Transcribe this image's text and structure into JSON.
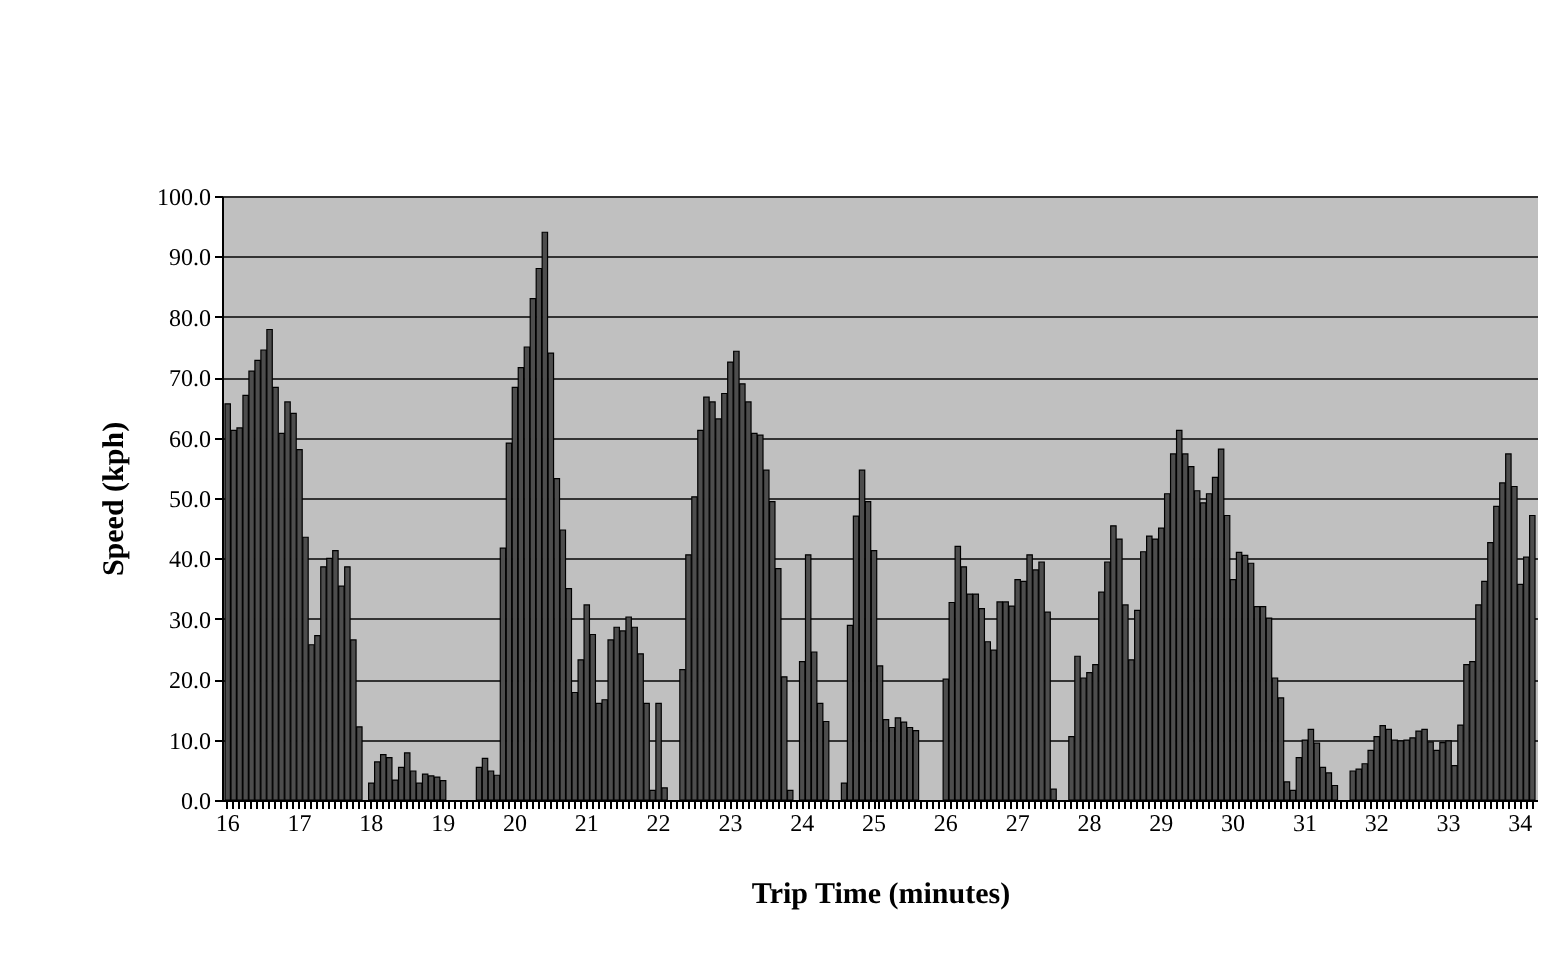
{
  "chart_data": {
    "type": "bar",
    "xlabel": "Trip Time (minutes)",
    "ylabel": "Speed (kph)",
    "color": "#4d4d4d",
    "grid": "y",
    "ylim": [
      0,
      100
    ],
    "yticks": [
      {
        "value": 0,
        "label": "0.0"
      },
      {
        "value": 10,
        "label": "10.0"
      },
      {
        "value": 20,
        "label": "20.0"
      },
      {
        "value": 30,
        "label": "30.0"
      },
      {
        "value": 40,
        "label": "40.0"
      },
      {
        "value": 50,
        "label": "50.0"
      },
      {
        "value": 60,
        "label": "60.0"
      },
      {
        "value": 70,
        "label": "70.0"
      },
      {
        "value": 80,
        "label": "80.0"
      },
      {
        "value": 90,
        "label": "90.0"
      },
      {
        "value": 100,
        "label": "100.0"
      }
    ],
    "categories": [
      "16",
      null,
      null,
      null,
      null,
      null,
      null,
      null,
      null,
      null,
      null,
      null,
      "17",
      null,
      null,
      null,
      null,
      null,
      null,
      null,
      null,
      null,
      null,
      null,
      "18",
      null,
      null,
      null,
      null,
      null,
      null,
      null,
      null,
      null,
      null,
      null,
      "19",
      null,
      null,
      null,
      null,
      null,
      null,
      null,
      null,
      null,
      null,
      null,
      "20",
      null,
      null,
      null,
      null,
      null,
      null,
      null,
      null,
      null,
      null,
      null,
      "21",
      null,
      null,
      null,
      null,
      null,
      null,
      null,
      null,
      null,
      null,
      null,
      "22",
      null,
      null,
      null,
      null,
      null,
      null,
      null,
      null,
      null,
      null,
      null,
      "23",
      null,
      null,
      null,
      null,
      null,
      null,
      null,
      null,
      null,
      null,
      null,
      "24",
      null,
      null,
      null,
      null,
      null,
      null,
      null,
      null,
      null,
      null,
      null,
      "25",
      null,
      null,
      null,
      null,
      null,
      null,
      null,
      null,
      null,
      null,
      null,
      "26",
      null,
      null,
      null,
      null,
      null,
      null,
      null,
      null,
      null,
      null,
      null,
      "27",
      null,
      null,
      null,
      null,
      null,
      null,
      null,
      null,
      null,
      null,
      null,
      "28",
      null,
      null,
      null,
      null,
      null,
      null,
      null,
      null,
      null,
      null,
      null,
      "29",
      null,
      null,
      null,
      null,
      null,
      null,
      null,
      null,
      null,
      null,
      null,
      "30",
      null,
      null,
      null,
      null,
      null,
      null,
      null,
      null,
      null,
      null,
      null,
      "31",
      null,
      null,
      null,
      null,
      null,
      null,
      null,
      null,
      null,
      null,
      null,
      "32",
      null,
      null,
      null,
      null,
      null,
      null,
      null,
      null,
      null,
      null,
      null,
      "33",
      null,
      null,
      null,
      null,
      null,
      null,
      null,
      null,
      null,
      null,
      null,
      "34",
      null,
      null
    ],
    "values": [
      65.6,
      61.2,
      61.6,
      67,
      71,
      72.8,
      74.5,
      77.9,
      68.3,
      60.7,
      65.9,
      64,
      58,
      43.5,
      25.7,
      27.2,
      38.6,
      40,
      41.3,
      35.4,
      38.6,
      26.5,
      12.1,
      0,
      2.8,
      6.3,
      7.5,
      7,
      3.3,
      5.4,
      7.8,
      4.8,
      2.8,
      4.3,
      4,
      3.8,
      3.2,
      0,
      0,
      0,
      0,
      0,
      5.4,
      6.9,
      4.8,
      4.1,
      41.7,
      59.1,
      68.3,
      71.6,
      75,
      83,
      88,
      94,
      74,
      53.2,
      44.7,
      35,
      17.8,
      23.2,
      32.3,
      27.4,
      16,
      16.6,
      26.5,
      28.6,
      28,
      30.3,
      28.6,
      24.2,
      16,
      1.6,
      16,
      2,
      0,
      0,
      21.6,
      40.6,
      50.2,
      61.2,
      66.7,
      65.9,
      63.1,
      67.3,
      72.5,
      74.3,
      68.9,
      65.9,
      60.7,
      60.4,
      54.6,
      49.4,
      38.3,
      20.4,
      1.6,
      0,
      22.9,
      40.6,
      24.5,
      16,
      13,
      0,
      0,
      2.8,
      28.9,
      47,
      54.6,
      49.4,
      41.3,
      22.2,
      13.3,
      12,
      13.6,
      12.9,
      12,
      11.5,
      0,
      0,
      0,
      0,
      20,
      32.7,
      42,
      38.6,
      34.1,
      34.1,
      31.7,
      26.2,
      24.8,
      32.8,
      32.8,
      32.1,
      36.5,
      36.2,
      40.6,
      38.1,
      39.4,
      31.1,
      1.8,
      0,
      0,
      10.5,
      23.8,
      20.2,
      21.1,
      22.4,
      34.4,
      39.4,
      45.4,
      43.2,
      32.3,
      23.2,
      31.4,
      41.1,
      43.7,
      43.2,
      45,
      50.7,
      57.3,
      61.2,
      57.3,
      55.2,
      51.2,
      49.2,
      50.7,
      53.4,
      58.1,
      47.1,
      36.5,
      41,
      40.5,
      39.2,
      32,
      32,
      30.1,
      20.2,
      16.9,
      3,
      1.6,
      7,
      9.9,
      11.7,
      9.4,
      5.4,
      4.5,
      2.4,
      0,
      0,
      4.8,
      5.1,
      6,
      8.2,
      10.5,
      12.3,
      11.7,
      9.9,
      9.8,
      9.9,
      10.3,
      11.4,
      11.7,
      9.6,
      8.2,
      9.5,
      9.8,
      5.7,
      12.4,
      22.4,
      22.9,
      32.3,
      36.2,
      42.6,
      48.6,
      52.5,
      57.3,
      51.9,
      35.7,
      40.2,
      47.1
    ]
  }
}
